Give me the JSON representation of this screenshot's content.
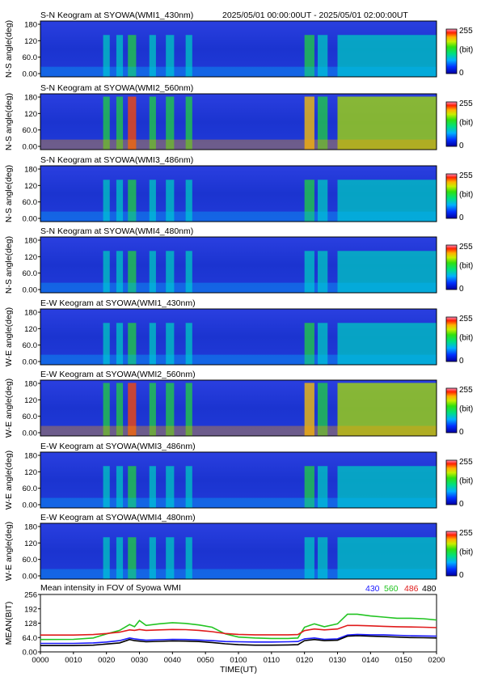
{
  "header": {
    "first_title": "S-N Keogram at SYOWA(WMI1_430nm)",
    "time_range": "2025/05/01 00:00:00UT - 2025/05/01 02:00:00UT"
  },
  "colors": {
    "c430": "#1a1aff",
    "c560": "#22c422",
    "c486": "#e01b1b",
    "c480": "#000000"
  },
  "chart_data": [
    {
      "type": "heatmap",
      "title": "S-N Keogram at SYOWA(WMI1_430nm)",
      "ylabel": "N-S angle(deg)",
      "yticks": [
        "180",
        "120",
        "60.0",
        "0.00"
      ],
      "ylim": [
        0,
        180
      ],
      "colorbar": {
        "max": "255",
        "unit": "(bit)",
        "min": "0"
      },
      "intensity": 0.55
    },
    {
      "type": "heatmap",
      "title": "S-N Keogram at SYOWA(WMI2_560nm)",
      "ylabel": "N-S angle(deg)",
      "yticks": [
        "180",
        "120",
        "60.0",
        "0.00"
      ],
      "ylim": [
        0,
        180
      ],
      "colorbar": {
        "max": "255",
        "unit": "(bit)",
        "min": "0"
      },
      "intensity": 1.0
    },
    {
      "type": "heatmap",
      "title": "S-N Keogram at SYOWA(WMI3_486nm)",
      "ylabel": "N-S angle(deg)",
      "yticks": [
        "180",
        "120",
        "60.0",
        "0.00"
      ],
      "ylim": [
        0,
        180
      ],
      "colorbar": {
        "max": "255",
        "unit": "(bit)",
        "min": "0"
      },
      "intensity": 0.5
    },
    {
      "type": "heatmap",
      "title": "S-N Keogram at SYOWA(WMI4_480nm)",
      "ylabel": "N-S angle(deg)",
      "yticks": [
        "180",
        "120",
        "60.0",
        "0.00"
      ],
      "ylim": [
        0,
        180
      ],
      "colorbar": {
        "max": "255",
        "unit": "(bit)",
        "min": "0"
      },
      "intensity": 0.45
    },
    {
      "type": "heatmap",
      "title": "E-W Keogram at SYOWA(WMI1_430nm)",
      "ylabel": "W-E angle(deg)",
      "yticks": [
        "180",
        "120",
        "60.0",
        "0.00"
      ],
      "ylim": [
        0,
        180
      ],
      "colorbar": {
        "max": "255",
        "unit": "(bit)",
        "min": "0"
      },
      "intensity": 0.55
    },
    {
      "type": "heatmap",
      "title": "E-W Keogram at SYOWA(WMI2_560nm)",
      "ylabel": "W-E angle(deg)",
      "yticks": [
        "180",
        "120",
        "60.0",
        "0.00"
      ],
      "ylim": [
        0,
        180
      ],
      "colorbar": {
        "max": "255",
        "unit": "(bit)",
        "min": "0"
      },
      "intensity": 1.0
    },
    {
      "type": "heatmap",
      "title": "E-W Keogram at SYOWA(WMI3_486nm)",
      "ylabel": "W-E angle(deg)",
      "yticks": [
        "180",
        "120",
        "60.0",
        "0.00"
      ],
      "ylim": [
        0,
        180
      ],
      "colorbar": {
        "max": "255",
        "unit": "(bit)",
        "min": "0"
      },
      "intensity": 0.5
    },
    {
      "type": "heatmap",
      "title": "E-W Keogram at SYOWA(WMI4_480nm)",
      "ylabel": "W-E angle(deg)",
      "yticks": [
        "180",
        "120",
        "60.0",
        "0.00"
      ],
      "ylim": [
        0,
        180
      ],
      "colorbar": {
        "max": "255",
        "unit": "(bit)",
        "min": "0"
      },
      "intensity": 0.45
    },
    {
      "type": "line",
      "title": "Mean intensity in FOV of Syowa WMI",
      "ylabel": "MEAN(BIT)",
      "xlabel": "TIME(UT)",
      "xticks": [
        "0000",
        "0010",
        "0020",
        "0030",
        "0040",
        "0050",
        "0100",
        "0110",
        "0120",
        "0130",
        "0140",
        "0150",
        "0200"
      ],
      "yticks": [
        "256",
        "192",
        "128",
        "64.0",
        "0.00"
      ],
      "ylim": [
        0,
        256
      ],
      "x": [
        0,
        10,
        16,
        20,
        24,
        27,
        28.5,
        30,
        32,
        36,
        40,
        44,
        48,
        52,
        56,
        60,
        65,
        70,
        75,
        78,
        80,
        83,
        86,
        90,
        93,
        96,
        100,
        104,
        108,
        112,
        116,
        120
      ],
      "series": [
        {
          "name": "430",
          "color_key": "c430",
          "values": [
            38,
            38,
            40,
            44,
            50,
            62,
            58,
            55,
            52,
            54,
            56,
            55,
            53,
            50,
            46,
            45,
            44,
            44,
            45,
            46,
            58,
            62,
            56,
            58,
            75,
            78,
            76,
            76,
            74,
            72,
            71,
            70
          ]
        },
        {
          "name": "560",
          "color_key": "c560",
          "values": [
            55,
            56,
            62,
            80,
            96,
            122,
            112,
            140,
            118,
            125,
            130,
            127,
            120,
            110,
            80,
            66,
            62,
            60,
            60,
            62,
            110,
            125,
            112,
            125,
            168,
            168,
            160,
            155,
            150,
            150,
            148,
            142
          ]
        },
        {
          "name": "486",
          "color_key": "c486",
          "values": [
            75,
            75,
            77,
            82,
            88,
            98,
            96,
            100,
            96,
            98,
            100,
            99,
            96,
            90,
            82,
            78,
            76,
            76,
            76,
            77,
            95,
            102,
            98,
            102,
            118,
            118,
            116,
            114,
            112,
            111,
            110,
            108
          ]
        },
        {
          "name": "480",
          "color_key": "c480",
          "values": [
            28,
            28,
            30,
            35,
            40,
            55,
            50,
            48,
            45,
            47,
            49,
            48,
            46,
            42,
            36,
            32,
            30,
            30,
            31,
            32,
            50,
            55,
            50,
            52,
            70,
            72,
            70,
            68,
            66,
            64,
            63,
            62
          ]
        }
      ]
    }
  ]
}
